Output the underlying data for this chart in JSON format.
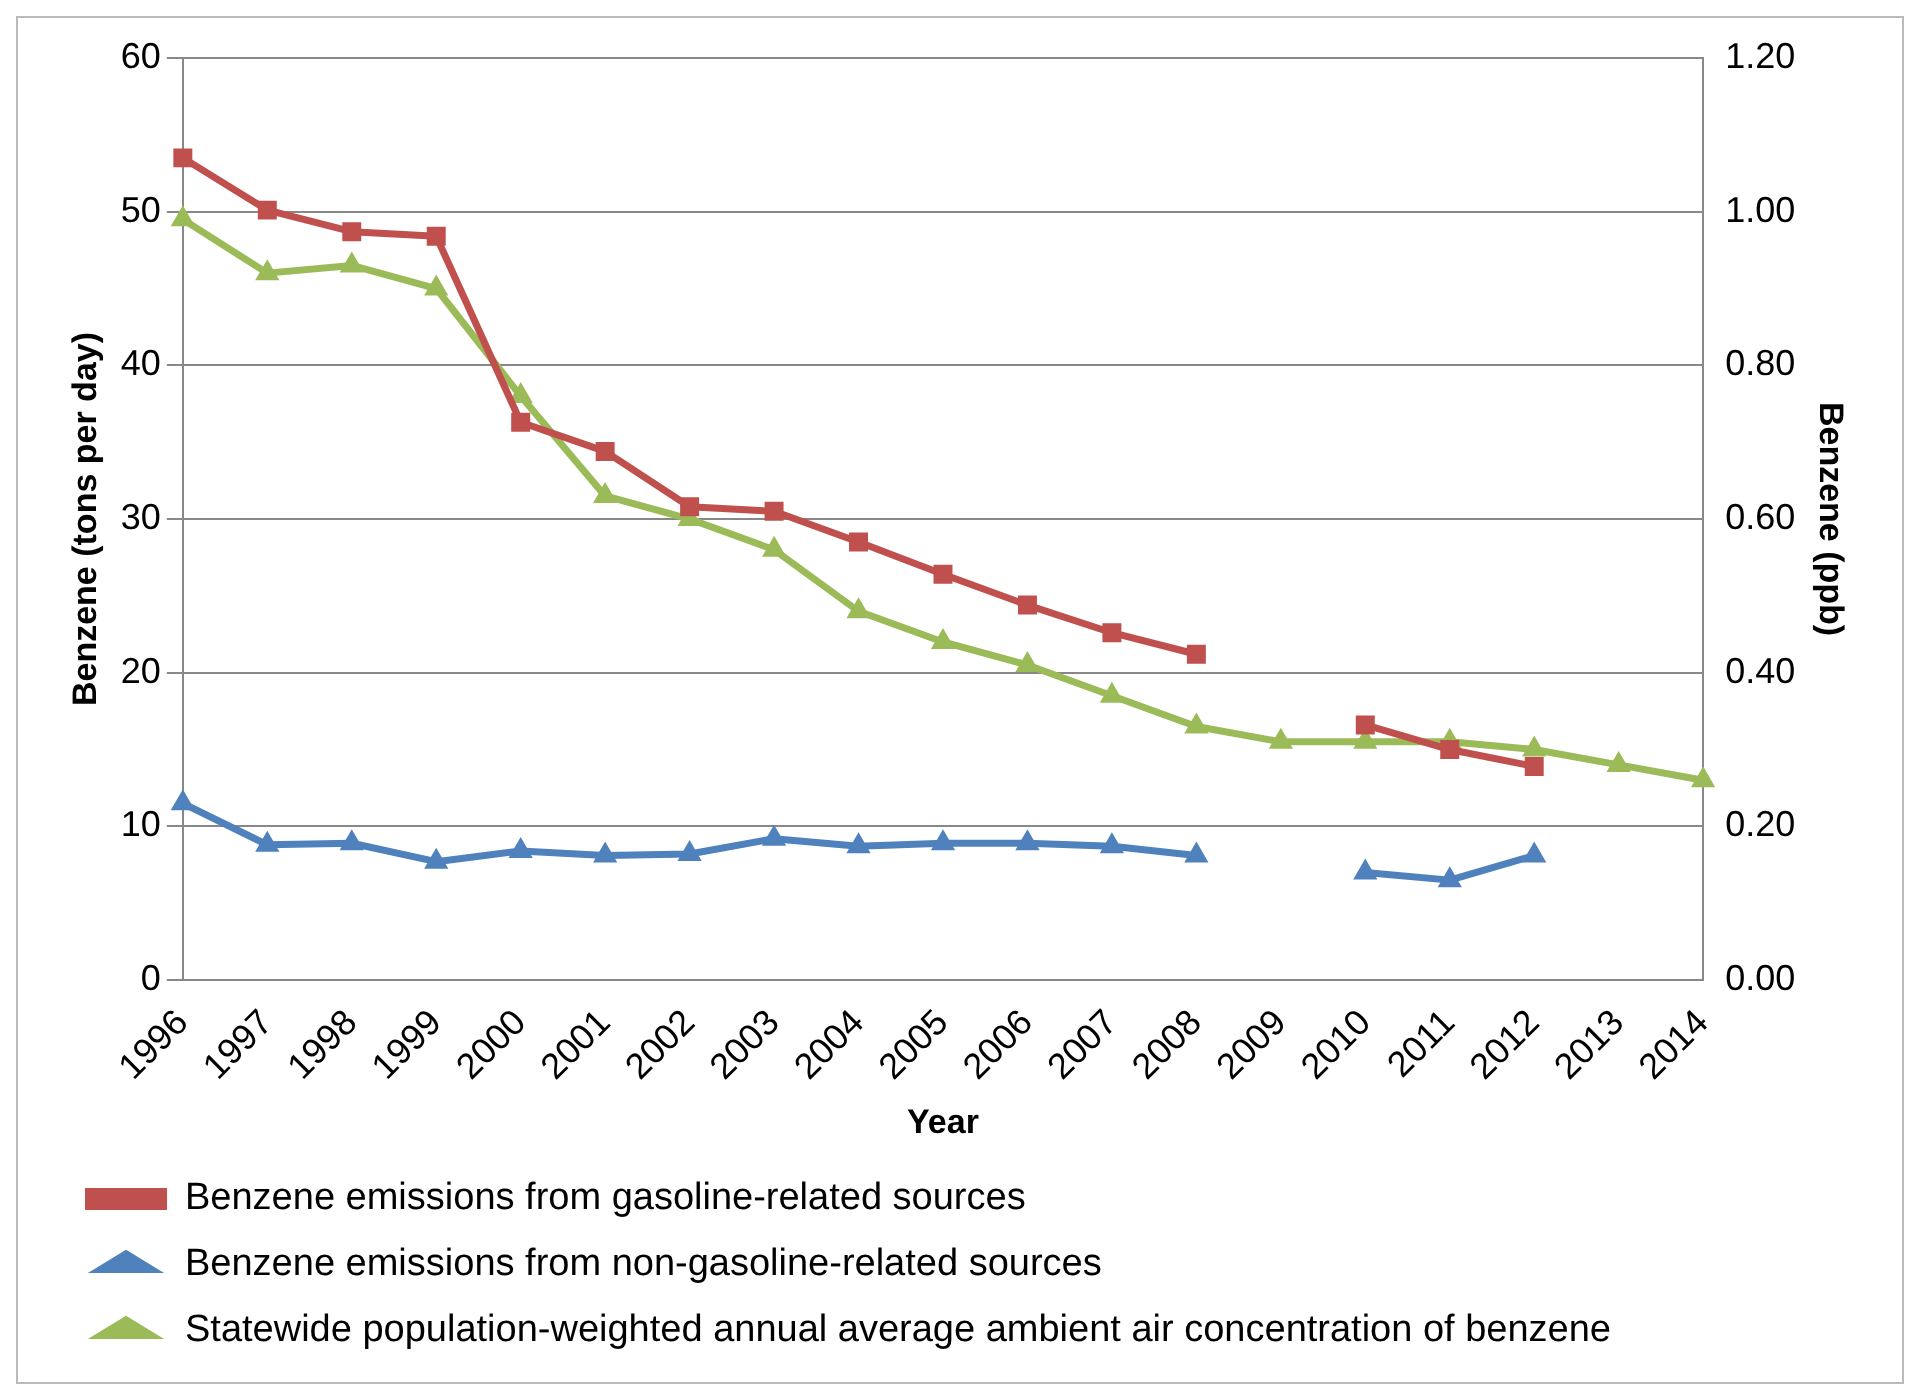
{
  "chart_data": {
    "type": "line",
    "xlabel": "Year",
    "ylabel": "Benzene (tons per day)",
    "y2label": "Benzene (ppb)",
    "categories": [
      "1996",
      "1997",
      "1998",
      "1999",
      "2000",
      "2001",
      "2002",
      "2003",
      "2004",
      "2005",
      "2006",
      "2007",
      "2008",
      "2009",
      "2010",
      "2011",
      "2012",
      "2013",
      "2014"
    ],
    "series": [
      {
        "name": "Benzene emissions from gasoline-related sources",
        "color": "#c0504d",
        "marker": "square",
        "values": [
          53.5,
          50.1,
          48.7,
          48.4,
          36.3,
          34.4,
          30.8,
          30.5,
          28.5,
          26.4,
          24.4,
          22.6,
          21.2,
          null,
          16.6,
          15,
          13.9,
          null,
          null
        ]
      },
      {
        "name": "Benzene emissions from non-gasoline-related sources",
        "color": "#4f81bd",
        "marker": "triangle",
        "values": [
          11.5,
          8.8,
          8.9,
          7.7,
          8.4,
          8.1,
          8.2,
          9.2,
          8.7,
          8.9,
          8.9,
          8.7,
          8.1,
          null,
          7.0,
          6.5,
          8.1,
          null,
          null
        ]
      },
      {
        "name": "Statewide population-weighted annual average ambient air concentration of benzene",
        "color": "#9bbb59",
        "marker": "triangle",
        "axis": "y2",
        "values": [
          0.99,
          0.92,
          0.93,
          0.9,
          0.76,
          0.63,
          0.6,
          0.56,
          0.48,
          0.44,
          0.41,
          0.37,
          0.33,
          0.31,
          0.31,
          0.31,
          0.3,
          0.28,
          0.26
        ]
      }
    ],
    "ylim": [
      0,
      60
    ],
    "yticks": [
      0,
      10,
      20,
      30,
      40,
      50,
      60
    ],
    "y2lim": [
      0,
      1.2
    ],
    "y2ticks": [
      {
        "value": 0,
        "label": "0.00"
      },
      {
        "value": 0.2,
        "label": "0.20"
      },
      {
        "value": 0.4,
        "label": "0.40"
      },
      {
        "value": 0.6,
        "label": "0.60"
      },
      {
        "value": 0.8,
        "label": "0.80"
      },
      {
        "value": 1,
        "label": "1.00"
      },
      {
        "value": 1.2,
        "label": "1.20"
      }
    ],
    "grid": "y",
    "legend": "bottom"
  }
}
